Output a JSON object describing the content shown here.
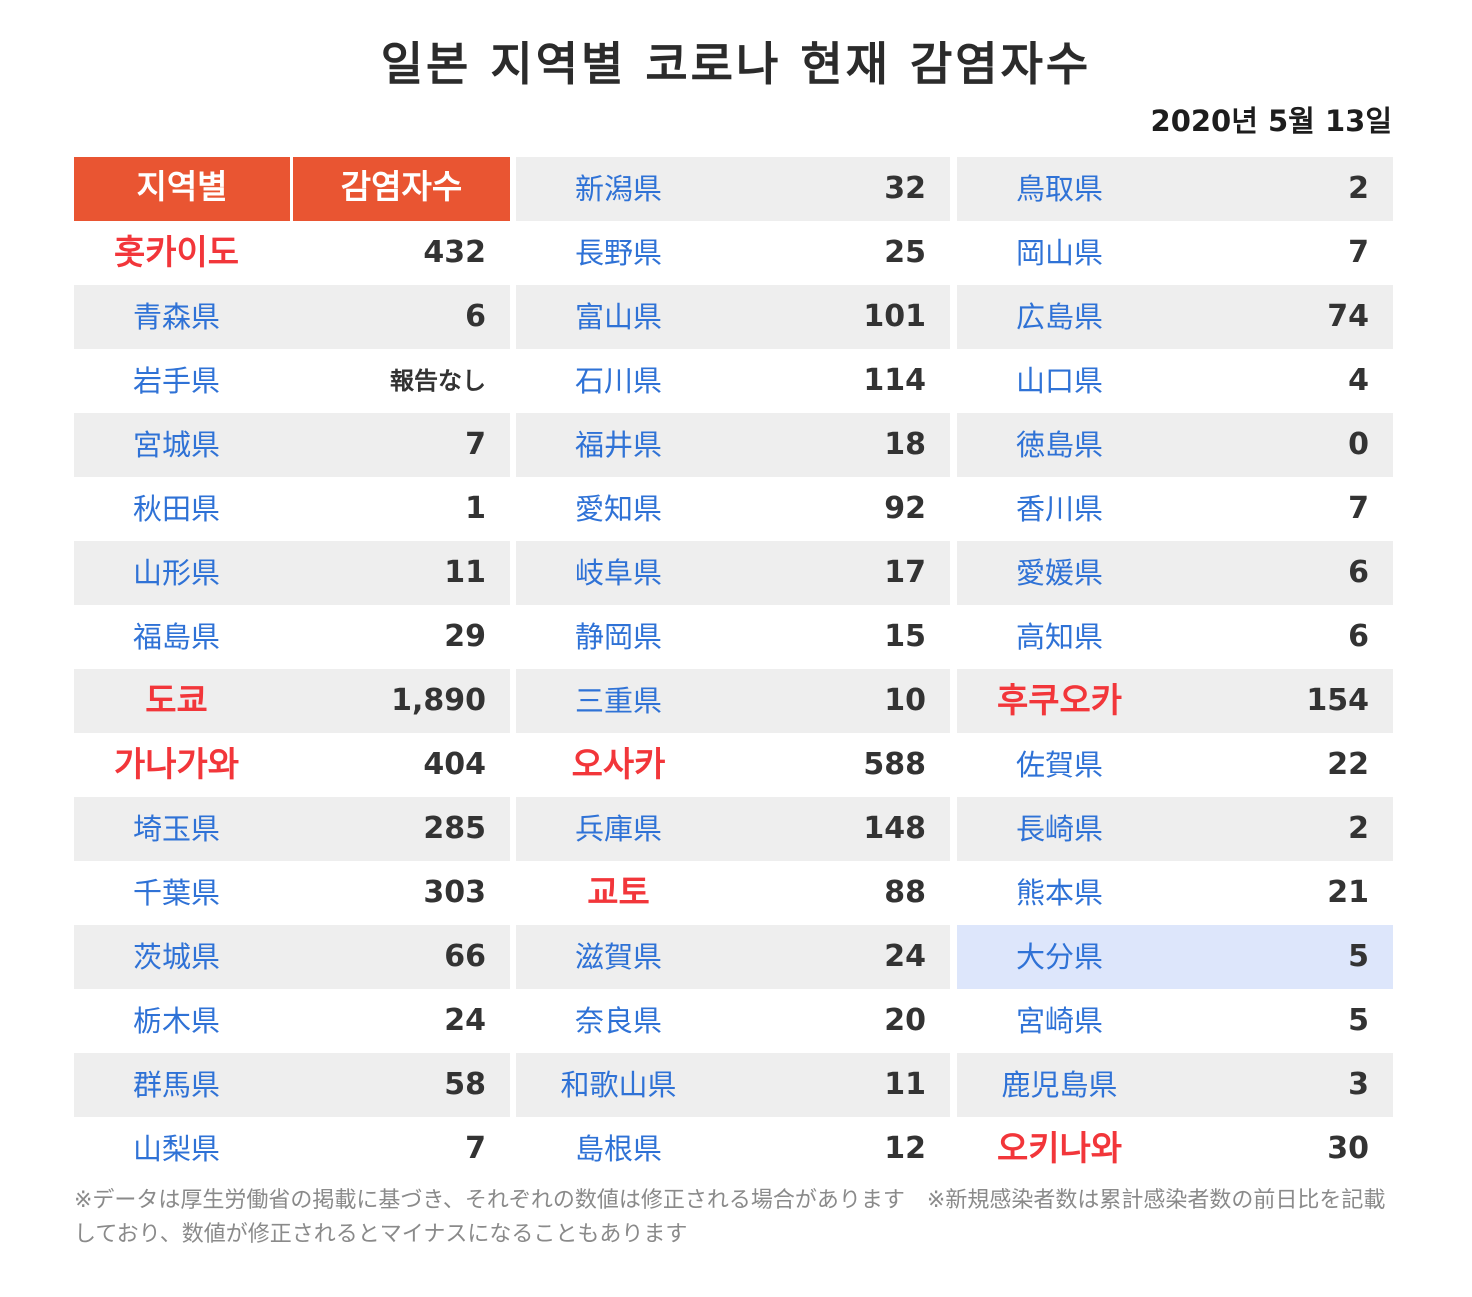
{
  "title": "일본 지역별 코로나 현재 감염자수",
  "date": "2020년 5월 13일",
  "header": {
    "region": "지역별",
    "count": "감염자수"
  },
  "columns": [
    [
      {
        "name": "홋카이도",
        "value": "432",
        "red": true,
        "bg": "white"
      },
      {
        "name": "青森県",
        "value": "6",
        "bg": "gray"
      },
      {
        "name": "岩手県",
        "value": "報告なし",
        "bg": "white",
        "small": true
      },
      {
        "name": "宮城県",
        "value": "7",
        "bg": "gray"
      },
      {
        "name": "秋田県",
        "value": "1",
        "bg": "white"
      },
      {
        "name": "山形県",
        "value": "11",
        "bg": "gray"
      },
      {
        "name": "福島県",
        "value": "29",
        "bg": "white"
      },
      {
        "name": "도쿄",
        "value": "1,890",
        "red": true,
        "bg": "gray"
      },
      {
        "name": "가나가와",
        "value": "404",
        "red": true,
        "bg": "white"
      },
      {
        "name": "埼玉県",
        "value": "285",
        "bg": "gray"
      },
      {
        "name": "千葉県",
        "value": "303",
        "bg": "white"
      },
      {
        "name": "茨城県",
        "value": "66",
        "bg": "gray"
      },
      {
        "name": "栃木県",
        "value": "24",
        "bg": "white"
      },
      {
        "name": "群馬県",
        "value": "58",
        "bg": "gray"
      },
      {
        "name": "山梨県",
        "value": "7",
        "bg": "white"
      }
    ],
    [
      {
        "name": "新潟県",
        "value": "32",
        "bg": "gray"
      },
      {
        "name": "長野県",
        "value": "25",
        "bg": "white"
      },
      {
        "name": "富山県",
        "value": "101",
        "bg": "gray"
      },
      {
        "name": "石川県",
        "value": "114",
        "bg": "white"
      },
      {
        "name": "福井県",
        "value": "18",
        "bg": "gray"
      },
      {
        "name": "愛知県",
        "value": "92",
        "bg": "white"
      },
      {
        "name": "岐阜県",
        "value": "17",
        "bg": "gray"
      },
      {
        "name": "静岡県",
        "value": "15",
        "bg": "white"
      },
      {
        "name": "三重県",
        "value": "10",
        "bg": "gray"
      },
      {
        "name": "오사카",
        "value": "588",
        "red": true,
        "bg": "white"
      },
      {
        "name": "兵庫県",
        "value": "148",
        "bg": "gray"
      },
      {
        "name": "교토",
        "value": "88",
        "red": true,
        "bg": "white"
      },
      {
        "name": "滋賀県",
        "value": "24",
        "bg": "gray"
      },
      {
        "name": "奈良県",
        "value": "20",
        "bg": "white"
      },
      {
        "name": "和歌山県",
        "value": "11",
        "bg": "gray"
      },
      {
        "name": "島根県",
        "value": "12",
        "bg": "white"
      }
    ],
    [
      {
        "name": "鳥取県",
        "value": "2",
        "bg": "gray"
      },
      {
        "name": "岡山県",
        "value": "7",
        "bg": "white"
      },
      {
        "name": "広島県",
        "value": "74",
        "bg": "gray"
      },
      {
        "name": "山口県",
        "value": "4",
        "bg": "white"
      },
      {
        "name": "徳島県",
        "value": "0",
        "bg": "gray"
      },
      {
        "name": "香川県",
        "value": "7",
        "bg": "white"
      },
      {
        "name": "愛媛県",
        "value": "6",
        "bg": "gray"
      },
      {
        "name": "高知県",
        "value": "6",
        "bg": "white"
      },
      {
        "name": "후쿠오카",
        "value": "154",
        "red": true,
        "bg": "gray"
      },
      {
        "name": "佐賀県",
        "value": "22",
        "bg": "white"
      },
      {
        "name": "長崎県",
        "value": "2",
        "bg": "gray"
      },
      {
        "name": "熊本県",
        "value": "21",
        "bg": "white"
      },
      {
        "name": "大分県",
        "value": "5",
        "bg": "highlight"
      },
      {
        "name": "宮崎県",
        "value": "5",
        "bg": "white"
      },
      {
        "name": "鹿児島県",
        "value": "3",
        "bg": "gray"
      },
      {
        "name": "오키나와",
        "value": "30",
        "red": true,
        "bg": "white"
      }
    ]
  ],
  "footnote": "※データは厚生労働省の掲載に基づき、それぞれの数値は修正される場合があります　※新規感染者数は累計感染者数の前日比を記載しており、数値が修正されるとマイナスになることもあります",
  "colors": {
    "header_bg": "#e95532",
    "region_text": "#2f72d6",
    "highlight_text": "#f2363a",
    "row_gray": "#eeeeee",
    "row_selected": "#dde6fb"
  }
}
